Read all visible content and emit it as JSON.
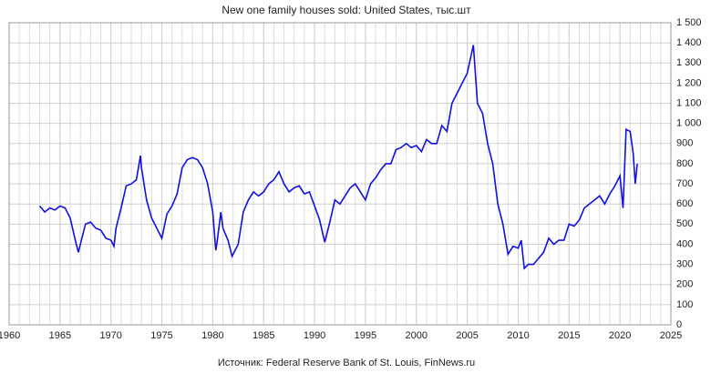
{
  "chart_data": {
    "type": "line",
    "title": "New one family houses sold: United States, тыс.шт",
    "source": "Источник: Federal Reserve Bank of St. Louis, FinNews.ru",
    "x": [
      1963.0,
      1963.5,
      1964.0,
      1964.5,
      1965.0,
      1965.5,
      1966.0,
      1966.5,
      1966.8,
      1967.0,
      1967.5,
      1968.0,
      1968.5,
      1969.0,
      1969.5,
      1970.0,
      1970.3,
      1970.5,
      1971.0,
      1971.5,
      1972.0,
      1972.5,
      1972.9,
      1973.0,
      1973.5,
      1974.0,
      1974.5,
      1975.0,
      1975.5,
      1976.0,
      1976.5,
      1977.0,
      1977.5,
      1978.0,
      1978.5,
      1979.0,
      1979.5,
      1980.0,
      1980.3,
      1980.4,
      1980.8,
      1981.0,
      1981.5,
      1981.9,
      1982.5,
      1983.0,
      1983.5,
      1984.0,
      1984.5,
      1985.0,
      1985.5,
      1986.0,
      1986.5,
      1987.0,
      1987.5,
      1988.0,
      1988.5,
      1989.0,
      1989.5,
      1990.0,
      1990.5,
      1991.0,
      1991.5,
      1992.0,
      1992.5,
      1993.0,
      1993.5,
      1994.0,
      1994.5,
      1995.0,
      1995.5,
      1996.0,
      1996.5,
      1997.0,
      1997.5,
      1998.0,
      1998.5,
      1999.0,
      1999.5,
      2000.0,
      2000.5,
      2001.0,
      2001.5,
      2002.0,
      2002.5,
      2003.0,
      2003.5,
      2004.0,
      2004.5,
      2005.0,
      2005.6,
      2006.0,
      2006.5,
      2007.0,
      2007.5,
      2008.0,
      2008.5,
      2009.0,
      2009.5,
      2010.0,
      2010.3,
      2010.6,
      2011.0,
      2011.5,
      2012.0,
      2012.5,
      2013.0,
      2013.5,
      2014.0,
      2014.5,
      2015.0,
      2015.5,
      2016.0,
      2016.5,
      2017.0,
      2017.5,
      2018.0,
      2018.5,
      2019.0,
      2019.5,
      2020.0,
      2020.3,
      2020.6,
      2021.0,
      2021.3,
      2021.5,
      2021.7
    ],
    "series": [
      {
        "name": "New one family houses sold",
        "color": "#1010e0",
        "values": [
          590,
          560,
          580,
          570,
          590,
          580,
          530,
          420,
          360,
          400,
          500,
          510,
          480,
          470,
          430,
          420,
          390,
          480,
          580,
          690,
          700,
          720,
          840,
          780,
          620,
          530,
          480,
          430,
          550,
          590,
          650,
          780,
          820,
          830,
          820,
          780,
          700,
          560,
          370,
          400,
          560,
          480,
          420,
          340,
          400,
          560,
          620,
          660,
          640,
          660,
          700,
          720,
          760,
          700,
          660,
          680,
          690,
          650,
          660,
          590,
          520,
          410,
          510,
          620,
          600,
          640,
          680,
          700,
          660,
          620,
          700,
          730,
          770,
          800,
          800,
          870,
          880,
          900,
          880,
          890,
          860,
          920,
          900,
          900,
          990,
          960,
          1100,
          1150,
          1200,
          1250,
          1389,
          1100,
          1050,
          900,
          800,
          600,
          500,
          350,
          390,
          380,
          420,
          280,
          300,
          300,
          330,
          360,
          430,
          400,
          420,
          420,
          500,
          490,
          520,
          580,
          600,
          620,
          640,
          600,
          650,
          690,
          740,
          580,
          970,
          960,
          850,
          700,
          800
        ]
      }
    ],
    "xlim": [
      1960,
      2025
    ],
    "xticks": [
      1960,
      1965,
      1970,
      1975,
      1980,
      1985,
      1990,
      1995,
      2000,
      2005,
      2010,
      2015,
      2020,
      2025
    ],
    "ylim": [
      0,
      1500
    ],
    "yticks": [
      0,
      100,
      200,
      300,
      400,
      500,
      600,
      700,
      800,
      900,
      {
        "value": 1000,
        "label": "1 000"
      },
      {
        "value": 1100,
        "label": "1 100"
      },
      {
        "value": 1200,
        "label": "1 200"
      },
      {
        "value": 1300,
        "label": "1 300"
      },
      {
        "value": 1400,
        "label": "1 400"
      },
      {
        "value": 1500,
        "label": "1 500"
      }
    ],
    "grid": true
  }
}
